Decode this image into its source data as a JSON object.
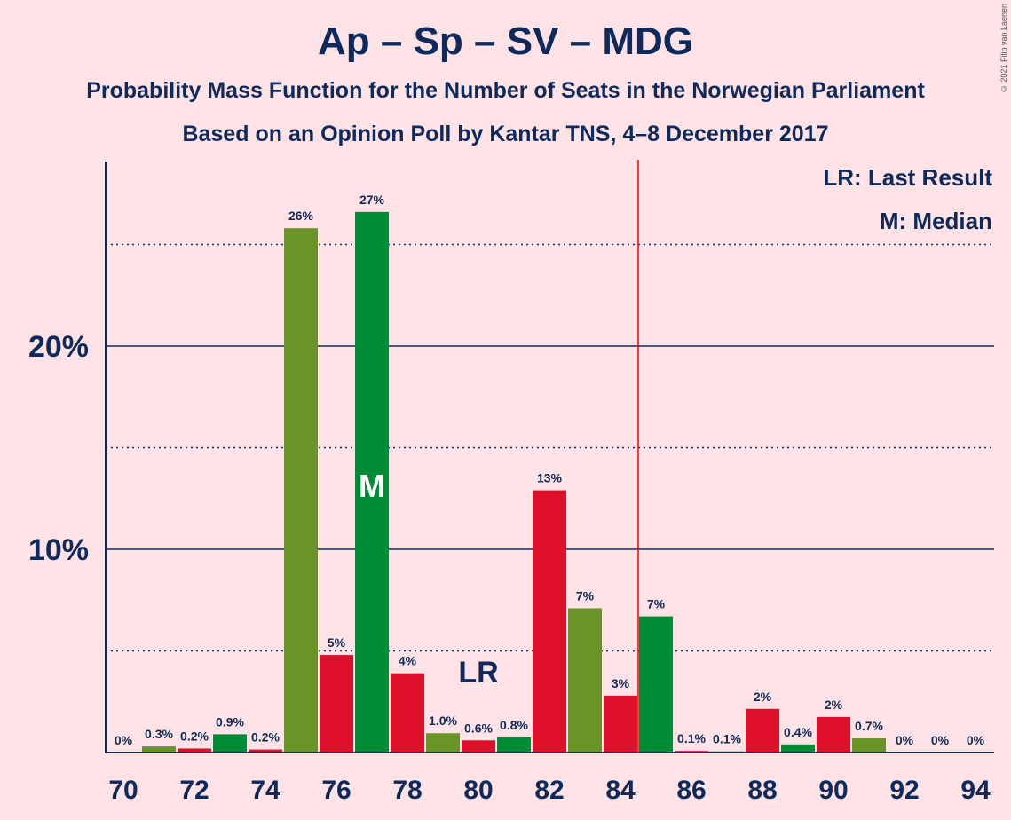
{
  "chart_data": {
    "type": "bar",
    "title": "Ap – Sp – SV – MDG",
    "subtitle": "Probability Mass Function for the Number of Seats in the Norwegian Parliament",
    "subtitle2": "Based on an Opinion Poll by Kantar TNS, 4–8 December 2017",
    "copyright": "© 2021 Filip van Laenen",
    "legend": {
      "lr": "LR: Last Result",
      "median": "M: Median"
    },
    "ylim": [
      0,
      29
    ],
    "y_ticks": [
      {
        "value": 10,
        "label": "10%"
      },
      {
        "value": 20,
        "label": "20%"
      }
    ],
    "x_ticks": [
      70,
      72,
      74,
      76,
      78,
      80,
      82,
      84,
      86,
      88,
      90,
      92,
      94
    ],
    "majority_line": 84.5,
    "median_seat": 77,
    "median_label": "M",
    "last_result_seat": 80,
    "last_result_label": "LR",
    "colors": {
      "red": "#e0102a",
      "green": "#008c35",
      "olive": "#6a9427",
      "majority": "#ff0000",
      "axis": "#0e2a5c"
    },
    "bars": [
      {
        "x": 70,
        "value": 0,
        "label": "0%",
        "color": "red"
      },
      {
        "x": 71,
        "value": 0.3,
        "label": "0.3%",
        "color": "olive"
      },
      {
        "x": 72,
        "value": 0.2,
        "label": "0.2%",
        "color": "red"
      },
      {
        "x": 73,
        "value": 0.9,
        "label": "0.9%",
        "color": "green"
      },
      {
        "x": 74,
        "value": 0.15,
        "label": "0.2%",
        "color": "red"
      },
      {
        "x": 75,
        "value": 25.8,
        "label": "26%",
        "color": "olive"
      },
      {
        "x": 76,
        "value": 4.8,
        "label": "5%",
        "color": "red"
      },
      {
        "x": 77,
        "value": 26.6,
        "label": "27%",
        "color": "green"
      },
      {
        "x": 78,
        "value": 3.9,
        "label": "4%",
        "color": "red"
      },
      {
        "x": 79,
        "value": 0.95,
        "label": "1.0%",
        "color": "olive"
      },
      {
        "x": 80,
        "value": 0.6,
        "label": "0.6%",
        "color": "red"
      },
      {
        "x": 81,
        "value": 0.75,
        "label": "0.8%",
        "color": "green"
      },
      {
        "x": 82,
        "value": 12.9,
        "label": "13%",
        "color": "red"
      },
      {
        "x": 83,
        "value": 7.1,
        "label": "7%",
        "color": "olive"
      },
      {
        "x": 84,
        "value": 2.8,
        "label": "3%",
        "color": "red"
      },
      {
        "x": 85,
        "value": 6.7,
        "label": "7%",
        "color": "green"
      },
      {
        "x": 86,
        "value": 0.08,
        "label": "0.1%",
        "color": "red"
      },
      {
        "x": 87,
        "value": 0.06,
        "label": "0.1%",
        "color": "olive"
      },
      {
        "x": 88,
        "value": 2.15,
        "label": "2%",
        "color": "red"
      },
      {
        "x": 89,
        "value": 0.4,
        "label": "0.4%",
        "color": "green"
      },
      {
        "x": 90,
        "value": 1.75,
        "label": "2%",
        "color": "red"
      },
      {
        "x": 91,
        "value": 0.7,
        "label": "0.7%",
        "color": "olive"
      },
      {
        "x": 92,
        "value": 0,
        "label": "0%",
        "color": "red"
      },
      {
        "x": 93,
        "value": 0,
        "label": "0%",
        "color": "green"
      },
      {
        "x": 94,
        "value": 0,
        "label": "0%",
        "color": "red"
      }
    ]
  }
}
